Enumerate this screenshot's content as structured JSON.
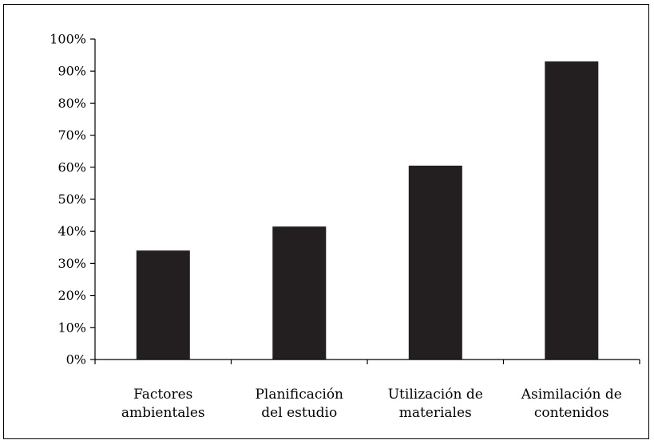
{
  "chart_data": {
    "type": "bar",
    "title": "",
    "xlabel": "",
    "ylabel": "",
    "categories": [
      [
        "Factores",
        "ambientales"
      ],
      [
        "Planificación",
        "del estudio"
      ],
      [
        "Utilización de",
        "materiales"
      ],
      [
        "Asimilación de",
        "contenidos"
      ]
    ],
    "values": [
      34,
      41.5,
      60.5,
      93
    ],
    "ylim": [
      0,
      100
    ],
    "yticks": [
      "0%",
      "10%",
      "20%",
      "30%",
      "40%",
      "50%",
      "60%",
      "70%",
      "80%",
      "90%",
      "100%"
    ],
    "legend": "none",
    "grid": false,
    "bar_color": "#231f20"
  }
}
